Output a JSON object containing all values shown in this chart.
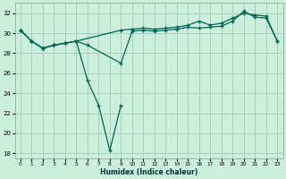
{
  "xlabel": "Humidex (Indice chaleur)",
  "background_color": "#cceedd",
  "grid_color": "#aaccbb",
  "line_color": "#006655",
  "xlim": [
    -0.5,
    23.5
  ],
  "ylim": [
    17.5,
    33
  ],
  "yticks": [
    18,
    20,
    22,
    24,
    26,
    28,
    30,
    32
  ],
  "xticks": [
    0,
    1,
    2,
    3,
    4,
    5,
    6,
    7,
    8,
    9,
    10,
    11,
    12,
    13,
    14,
    15,
    16,
    17,
    18,
    19,
    20,
    21,
    22,
    23
  ],
  "series": [
    {
      "x": [
        0,
        1,
        2,
        3,
        4,
        5,
        9,
        10,
        11,
        12,
        13,
        14,
        15,
        16,
        17,
        18,
        19,
        20,
        21,
        22,
        23
      ],
      "y": [
        30.3,
        29.2,
        28.5,
        28.8,
        29.0,
        29.2,
        30.3,
        30.4,
        30.5,
        30.4,
        30.5,
        30.6,
        30.8,
        31.2,
        30.8,
        31.0,
        31.5,
        32.0,
        31.8,
        31.7,
        29.2
      ]
    },
    {
      "x": [
        0,
        1,
        2,
        3,
        4,
        5,
        6,
        9,
        10,
        11,
        12,
        13,
        14,
        15,
        16,
        17,
        18,
        19,
        20,
        21,
        22,
        23
      ],
      "y": [
        30.3,
        29.2,
        28.5,
        28.8,
        29.0,
        29.2,
        28.8,
        27.0,
        30.2,
        30.3,
        30.2,
        30.3,
        30.4,
        30.6,
        30.5,
        30.6,
        30.7,
        31.2,
        32.2,
        31.6,
        31.5,
        29.2
      ]
    },
    {
      "x": [
        0,
        1,
        2,
        3,
        4,
        5,
        6,
        7,
        8,
        9
      ],
      "y": [
        30.3,
        29.2,
        28.5,
        28.8,
        29.0,
        29.2,
        25.3,
        22.8,
        18.3,
        22.8
      ]
    }
  ]
}
